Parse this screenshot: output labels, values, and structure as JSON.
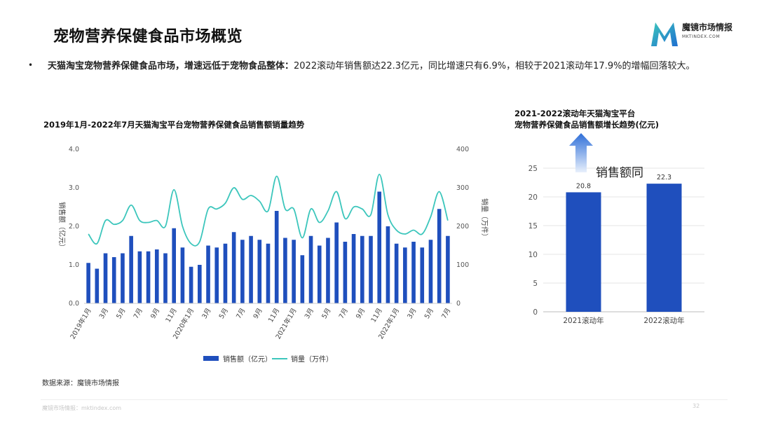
{
  "page": {
    "title": "宠物营养保健食品市场概览",
    "logo_name": "魔镜市场情报",
    "logo_domain": "MKTINDEX.COM",
    "bullet_bold": "天猫淘宝宠物营养保健食品市场，增速远低于宠物食品整体：",
    "bullet_text": "2022滚动年销售额达22.3亿元，同比增速只有6.9%，相较于2021滚动年17.9%的增幅回落较大。",
    "source": "数据来源：魔镜市场情报",
    "footer": "魔镜市场情报：mktindex.com",
    "page_number": "32",
    "brand_color": "#1f4fbd",
    "line_color": "#3cc6bc"
  },
  "chart_data": [
    {
      "type": "bar",
      "title": "2019年1月-2022年7月天猫淘宝平台宠物营养保健食品销售额销量趋势",
      "ylabel": "销售额（亿元）",
      "y2label": "销量（万件）",
      "ylim": [
        0,
        4
      ],
      "y2lim": [
        0,
        400
      ],
      "yticks": [
        "0.0",
        "1.0",
        "2.0",
        "3.0",
        "4.0"
      ],
      "y2ticks": [
        "0",
        "100",
        "200",
        "300",
        "400"
      ],
      "xtick_labels": [
        "2019年1月",
        "3月",
        "5月",
        "7月",
        "9月",
        "11月",
        "2020年1月",
        "3月",
        "5月",
        "7月",
        "9月",
        "11月",
        "2021年1月",
        "3月",
        "5月",
        "7月",
        "9月",
        "11月",
        "2022年1月",
        "3月",
        "5月",
        "7月"
      ],
      "x": [
        "2019-01",
        "2019-02",
        "2019-03",
        "2019-04",
        "2019-05",
        "2019-06",
        "2019-07",
        "2019-08",
        "2019-09",
        "2019-10",
        "2019-11",
        "2019-12",
        "2020-01",
        "2020-02",
        "2020-03",
        "2020-04",
        "2020-05",
        "2020-06",
        "2020-07",
        "2020-08",
        "2020-09",
        "2020-10",
        "2020-11",
        "2020-12",
        "2021-01",
        "2021-02",
        "2021-03",
        "2021-04",
        "2021-05",
        "2021-06",
        "2021-07",
        "2021-08",
        "2021-09",
        "2021-10",
        "2021-11",
        "2021-12",
        "2022-01",
        "2022-02",
        "2022-03",
        "2022-04",
        "2022-05",
        "2022-06",
        "2022-07"
      ],
      "series": [
        {
          "name": "销售额（亿元）",
          "kind": "bar",
          "axis": "left",
          "values": [
            1.05,
            0.9,
            1.3,
            1.2,
            1.3,
            1.75,
            1.35,
            1.35,
            1.4,
            1.3,
            1.95,
            1.45,
            0.95,
            1.0,
            1.5,
            1.45,
            1.55,
            1.85,
            1.65,
            1.75,
            1.65,
            1.55,
            2.4,
            1.7,
            1.65,
            1.25,
            1.75,
            1.5,
            1.7,
            2.1,
            1.6,
            1.8,
            1.75,
            1.75,
            2.9,
            2.0,
            1.55,
            1.45,
            1.6,
            1.45,
            1.65,
            2.45,
            1.75
          ]
        },
        {
          "name": "销量（万件）",
          "kind": "line",
          "axis": "right",
          "values": [
            180,
            155,
            215,
            205,
            215,
            255,
            215,
            210,
            215,
            200,
            295,
            200,
            155,
            160,
            245,
            245,
            260,
            300,
            270,
            280,
            265,
            240,
            330,
            245,
            245,
            170,
            245,
            210,
            240,
            290,
            220,
            250,
            245,
            230,
            335,
            230,
            190,
            180,
            190,
            180,
            225,
            290,
            215
          ]
        }
      ],
      "legend_position": "bottom"
    },
    {
      "type": "bar",
      "title": "2021-2022滚动年天猫淘宝平台\n宠物营养保健食品销售额增长趋势(亿元)",
      "categories": [
        "2021滚动年",
        "2022滚动年"
      ],
      "values": [
        20.8,
        22.3
      ],
      "ylim": [
        0,
        25
      ],
      "yticks": [
        "0",
        "5",
        "10",
        "15",
        "20",
        "25"
      ],
      "annotation": "销售额同",
      "grid": "horizontal"
    }
  ]
}
